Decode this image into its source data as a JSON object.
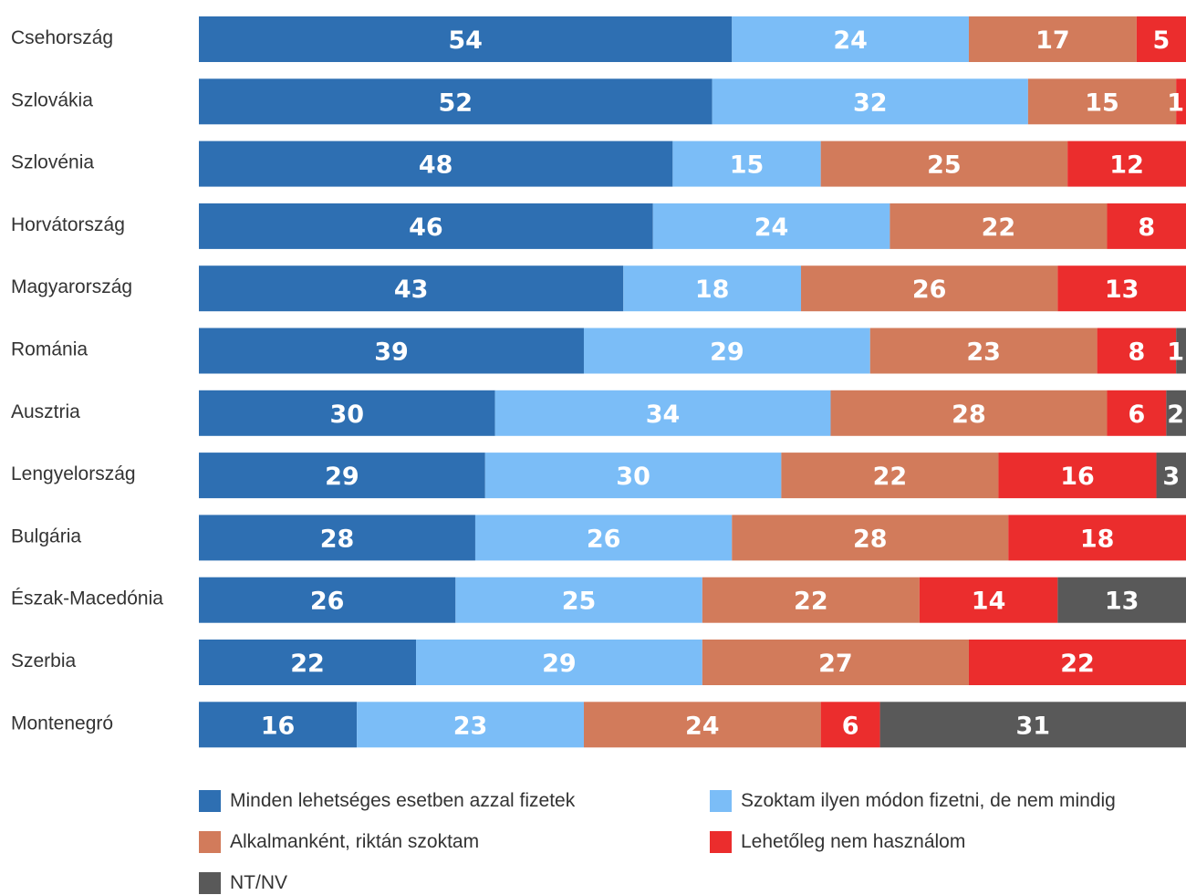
{
  "chart_data": {
    "type": "bar",
    "orientation": "horizontal",
    "stacked": true,
    "categories": [
      "Csehország",
      "Szlovákia",
      "Szlovénia",
      "Horvátország",
      "Magyarország",
      "Románia",
      "Ausztria",
      "Lengyelország",
      "Bulgária",
      "Észak-Macedónia",
      "Szerbia",
      "Montenegró"
    ],
    "series": [
      {
        "name": "Minden lehetséges esetben azzal fizetek",
        "color": "#2e6fb2",
        "values": [
          54,
          52,
          48,
          46,
          43,
          39,
          30,
          29,
          28,
          26,
          22,
          16
        ]
      },
      {
        "name": "Szoktam ilyen módon fizetni, de nem mindig",
        "color": "#7bbdf7",
        "values": [
          24,
          32,
          15,
          24,
          18,
          29,
          34,
          30,
          26,
          25,
          29,
          23
        ]
      },
      {
        "name": "Alkalmanként, riktán szoktam",
        "color": "#d27b5b",
        "values": [
          17,
          15,
          25,
          22,
          26,
          23,
          28,
          22,
          28,
          22,
          27,
          24
        ]
      },
      {
        "name": "Lehetőleg nem használom",
        "color": "#eb2d2d",
        "values": [
          5,
          1,
          12,
          8,
          13,
          8,
          6,
          16,
          18,
          14,
          22,
          6
        ]
      },
      {
        "name": "NT/NV",
        "color": "#595959",
        "values": [
          0,
          0,
          0,
          0,
          0,
          1,
          2,
          3,
          0,
          13,
          0,
          31
        ]
      }
    ],
    "xlim": [
      0,
      100
    ],
    "grid": false,
    "legend": "bottom",
    "title": "",
    "xlabel": "",
    "ylabel": ""
  }
}
